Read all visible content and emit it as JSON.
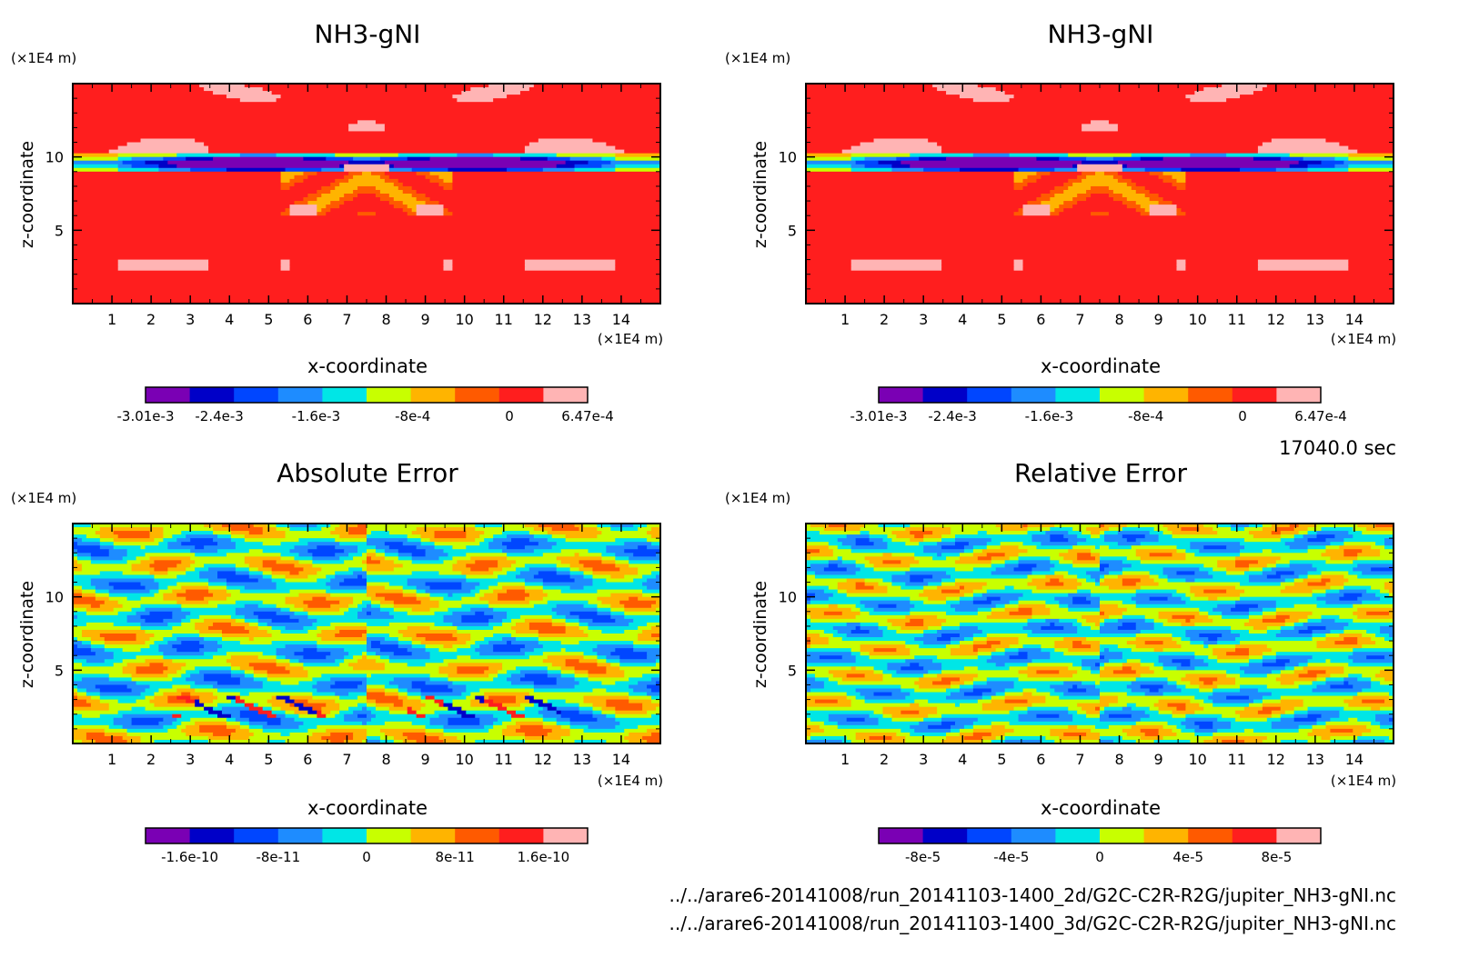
{
  "x_unit": "(×1E4 m)",
  "z_unit": "(×1E4 m)",
  "time": "17040.0 sec",
  "files": [
    "../../arare6-20141008/run_20141103-1400_2d/G2C-C2R-R2G/jupiter_NH3-gNI.nc",
    "../../arare6-20141008/run_20141103-1400_3d/G2C-C2R-R2G/jupiter_NH3-gNI.nc"
  ],
  "chart_data": [
    {
      "type": "heatmap",
      "title": "NH3-gNI",
      "xlabel": "x-coordinate",
      "ylabel": "z-coordinate",
      "x_ticks": [
        "1",
        "2",
        "3",
        "4",
        "5",
        "6",
        "7",
        "8",
        "9",
        "10",
        "11",
        "12",
        "13",
        "14"
      ],
      "y_ticks": [
        "5",
        "10"
      ],
      "xlim": [
        0,
        15
      ],
      "ylim": [
        0,
        15
      ],
      "colorbar": {
        "colors": [
          "#7a00b4",
          "#0000c8",
          "#0046ff",
          "#1e8cff",
          "#00e6e6",
          "#c8ff00",
          "#ffb400",
          "#ff5a00",
          "#ff1e1e",
          "#ffb4b4"
        ],
        "labels": [
          "-3.01e-3",
          "-2.4e-3",
          "-1.6e-3",
          "-8e-4",
          "0",
          "6.47e-4"
        ],
        "range": [
          -0.00301,
          0.000647
        ]
      },
      "field": "ref"
    },
    {
      "type": "heatmap",
      "title": "NH3-gNI",
      "xlabel": "x-coordinate",
      "ylabel": "z-coordinate",
      "x_ticks": [
        "1",
        "2",
        "3",
        "4",
        "5",
        "6",
        "7",
        "8",
        "9",
        "10",
        "11",
        "12",
        "13",
        "14"
      ],
      "y_ticks": [
        "5",
        "10"
      ],
      "xlim": [
        0,
        15
      ],
      "ylim": [
        0,
        15
      ],
      "colorbar": {
        "colors": [
          "#7a00b4",
          "#0000c8",
          "#0046ff",
          "#1e8cff",
          "#00e6e6",
          "#c8ff00",
          "#ffb400",
          "#ff5a00",
          "#ff1e1e",
          "#ffb4b4"
        ],
        "labels": [
          "-3.01e-3",
          "-2.4e-3",
          "-1.6e-3",
          "-8e-4",
          "0",
          "6.47e-4"
        ],
        "range": [
          -0.00301,
          0.000647
        ]
      },
      "field": "ref"
    },
    {
      "type": "heatmap",
      "title": "Absolute Error",
      "xlabel": "x-coordinate",
      "ylabel": "z-coordinate",
      "x_ticks": [
        "1",
        "2",
        "3",
        "4",
        "5",
        "6",
        "7",
        "8",
        "9",
        "10",
        "11",
        "12",
        "13",
        "14"
      ],
      "y_ticks": [
        "5",
        "10"
      ],
      "xlim": [
        0,
        15
      ],
      "ylim": [
        0,
        15
      ],
      "colorbar": {
        "colors": [
          "#7a00b4",
          "#0000c8",
          "#0046ff",
          "#1e8cff",
          "#00e6e6",
          "#c8ff00",
          "#ffb400",
          "#ff5a00",
          "#ff1e1e",
          "#ffb4b4"
        ],
        "labels": [
          "-1.6e-10",
          "-8e-11",
          "0",
          "8e-11",
          "1.6e-10"
        ],
        "range": [
          -2e-10,
          2e-10
        ]
      },
      "field": "abs"
    },
    {
      "type": "heatmap",
      "title": "Relative Error",
      "xlabel": "x-coordinate",
      "ylabel": "z-coordinate",
      "x_ticks": [
        "1",
        "2",
        "3",
        "4",
        "5",
        "6",
        "7",
        "8",
        "9",
        "10",
        "11",
        "12",
        "13",
        "14"
      ],
      "y_ticks": [
        "5",
        "10"
      ],
      "xlim": [
        0,
        15
      ],
      "ylim": [
        0,
        15
      ],
      "colorbar": {
        "colors": [
          "#7a00b4",
          "#0000c8",
          "#0046ff",
          "#1e8cff",
          "#00e6e6",
          "#c8ff00",
          "#ffb400",
          "#ff5a00",
          "#ff1e1e",
          "#ffb4b4"
        ],
        "labels": [
          "-8e-5",
          "-4e-5",
          "0",
          "4e-5",
          "8e-5"
        ],
        "range": [
          -0.0001,
          0.0001
        ]
      },
      "field": "rel"
    }
  ]
}
